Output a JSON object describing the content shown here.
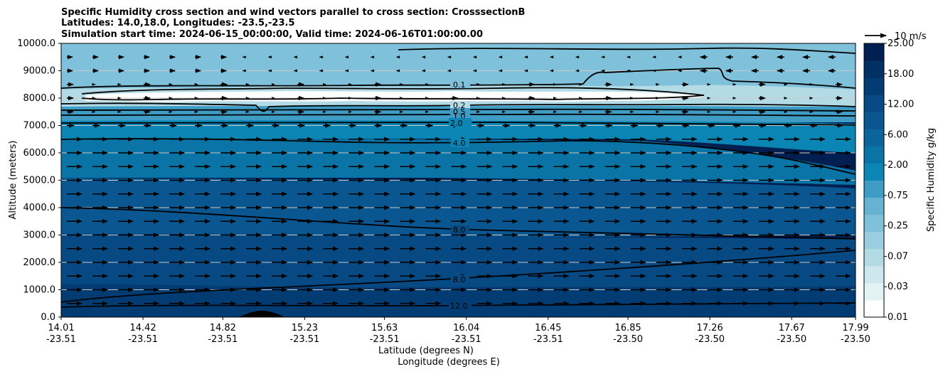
{
  "chart_data": {
    "type": "heatmap",
    "title": [
      "Specific Humidity cross section and wind vectors parallel to cross section: CrosssectionB",
      "Latitudes: 14.0,18.0, Longitudes: -23.5,-23.5",
      "Simulation start time: 2024-06-15_00:00:00, Valid time: 2024-06-16T01:00:00.00"
    ],
    "ylabel": "Altitude (meters)",
    "xlabel": [
      "Latitude (degrees N)",
      "Longitude (degrees E)"
    ],
    "ylim": [
      0,
      10000
    ],
    "y_ticks": [
      "0.0",
      "1000.0",
      "2000.0",
      "3000.0",
      "4000.0",
      "5000.0",
      "6000.0",
      "7000.0",
      "8000.0",
      "9000.0",
      "10000.0"
    ],
    "y_tick_values": [
      0,
      1000,
      2000,
      3000,
      4000,
      5000,
      6000,
      7000,
      8000,
      9000,
      10000
    ],
    "x_ticks_lat": [
      "14.01",
      "14.42",
      "14.82",
      "15.23",
      "15.63",
      "16.04",
      "16.45",
      "16.85",
      "17.26",
      "17.67",
      "17.99"
    ],
    "x_ticks_lon": [
      "-23.51",
      "-23.51",
      "-23.51",
      "-23.51",
      "-23.51",
      "-23.51",
      "-23.51",
      "-23.50",
      "-23.50",
      "-23.50",
      "-23.50"
    ],
    "x_tick_lat_values": [
      14.01,
      14.42,
      14.82,
      15.23,
      15.63,
      16.04,
      16.45,
      16.85,
      17.26,
      17.67,
      17.99
    ],
    "grid": "horizontal",
    "colorbar": {
      "label": "Specific Humidity g/kg",
      "tick_labels": [
        "0.01",
        "0.03",
        "0.07",
        "0.25",
        "0.75",
        "2.00",
        "6.00",
        "12.00",
        "18.00",
        "25.00"
      ],
      "colors": [
        "#ffffff",
        "#e3f2f4",
        "#cce7ed",
        "#b3dbe6",
        "#98cee0",
        "#7fc0da",
        "#66b2d1",
        "#3f9cc4",
        "#0b85b3",
        "#0a74a7",
        "#0b659b",
        "#095690",
        "#064983",
        "#033c73",
        "#022f64",
        "#011f51"
      ]
    },
    "contour_levels_labeled": [
      "0.1",
      "0.2",
      "0.5",
      "1.0",
      "2.0",
      "4.0",
      "8.0",
      "12.0"
    ],
    "quiver_key": {
      "label": "10 m/s",
      "value": 10
    }
  }
}
